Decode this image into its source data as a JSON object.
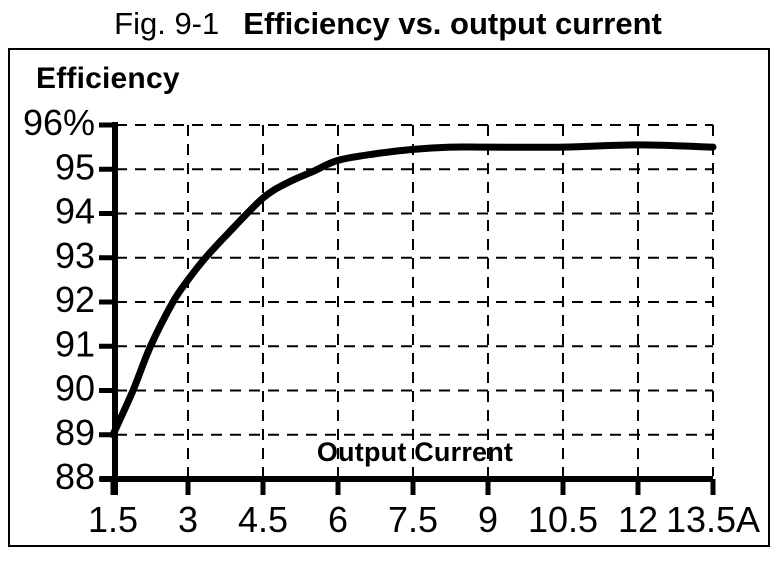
{
  "title": {
    "figure_label": "Fig. 9-1",
    "text": "Efficiency vs. output current"
  },
  "chart_data": {
    "type": "line",
    "title": "Fig. 9-1 Efficiency vs. output current",
    "xlabel": "Output Current",
    "ylabel": "Efficiency",
    "x_unit": "A",
    "y_unit": "%",
    "xlim": [
      1.5,
      13.5
    ],
    "ylim": [
      88,
      96
    ],
    "grid": {
      "style": "dashed",
      "vertical_at": [
        3,
        4.5,
        6,
        7.5,
        9,
        10.5,
        12,
        13.5
      ],
      "horizontal_at": [
        89,
        90,
        91,
        92,
        93,
        94,
        95,
        96
      ]
    },
    "x_ticks": [
      {
        "value": 1.5,
        "label": "1.5"
      },
      {
        "value": 3,
        "label": "3"
      },
      {
        "value": 4.5,
        "label": "4.5"
      },
      {
        "value": 6,
        "label": "6"
      },
      {
        "value": 7.5,
        "label": "7.5"
      },
      {
        "value": 9,
        "label": "9"
      },
      {
        "value": 10.5,
        "label": "10.5"
      },
      {
        "value": 12,
        "label": "12"
      },
      {
        "value": 13.5,
        "label": "13.5A"
      }
    ],
    "y_ticks": [
      {
        "value": 96,
        "label": "96%"
      },
      {
        "value": 95,
        "label": "95"
      },
      {
        "value": 94,
        "label": "94"
      },
      {
        "value": 93,
        "label": "93"
      },
      {
        "value": 92,
        "label": "92"
      },
      {
        "value": 91,
        "label": "91"
      },
      {
        "value": 90,
        "label": "90"
      },
      {
        "value": 89,
        "label": "89"
      },
      {
        "value": 88,
        "label": "88"
      }
    ],
    "legend": null,
    "series": [
      {
        "name": "Efficiency",
        "color": "#000000",
        "points": [
          [
            1.5,
            89.0
          ],
          [
            1.9,
            90.0
          ],
          [
            2.25,
            91.0
          ],
          [
            2.7,
            92.0
          ],
          [
            3.0,
            92.5
          ],
          [
            3.35,
            93.0
          ],
          [
            3.8,
            93.55
          ],
          [
            4.5,
            94.35
          ],
          [
            5.0,
            94.7
          ],
          [
            5.5,
            94.95
          ],
          [
            6.0,
            95.2
          ],
          [
            6.75,
            95.35
          ],
          [
            7.5,
            95.45
          ],
          [
            8.25,
            95.5
          ],
          [
            9.0,
            95.5
          ],
          [
            10.5,
            95.5
          ],
          [
            12.0,
            95.55
          ],
          [
            13.5,
            95.5
          ]
        ]
      }
    ],
    "colors": {
      "axis": "#000000",
      "grid": "#000000",
      "line": "#000000",
      "background": "#ffffff"
    }
  }
}
